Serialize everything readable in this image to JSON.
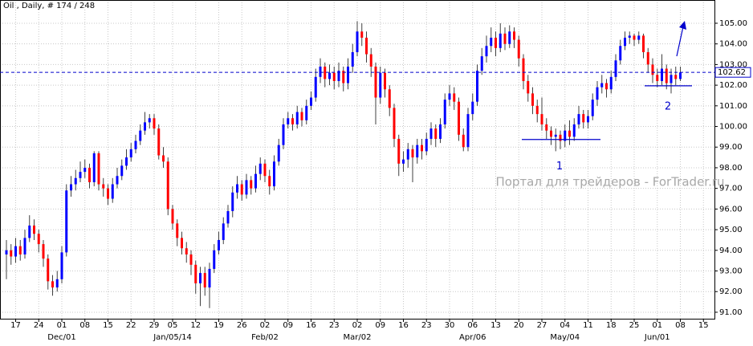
{
  "chart_data": {
    "type": "candlestick",
    "title": "Oil , Daily, # 174 / 248",
    "watermark": "Портал для трейдеров - ForTrader.ru",
    "categories": [
      null,
      null,
      "17",
      null,
      null,
      null,
      null,
      "24",
      null,
      null,
      null,
      null,
      "01",
      null,
      null,
      null,
      null,
      "08",
      null,
      null,
      null,
      null,
      "15",
      null,
      null,
      null,
      null,
      "22",
      null,
      null,
      null,
      null,
      "29",
      null,
      null,
      null,
      "05",
      null,
      null,
      null,
      null,
      "12",
      null,
      null,
      null,
      null,
      "19",
      null,
      null,
      null,
      null,
      "26",
      null,
      null,
      null,
      null,
      "02",
      null,
      null,
      null,
      null,
      "09",
      null,
      null,
      null,
      null,
      "16",
      null,
      null,
      null,
      null,
      "23",
      null,
      null,
      null,
      null,
      "02",
      null,
      null,
      null,
      null,
      "09",
      null,
      null,
      null,
      null,
      "16",
      null,
      null,
      null,
      null,
      "23",
      null,
      null,
      null,
      null,
      "30",
      null,
      null,
      null,
      null,
      "06",
      null,
      null,
      null,
      null,
      "13",
      null,
      null,
      null,
      null,
      "20",
      null,
      null,
      null,
      null,
      "27",
      null,
      null,
      null,
      null,
      "04",
      null,
      null,
      null,
      null,
      "11",
      null,
      null,
      null,
      null,
      "18",
      null,
      null,
      null,
      null,
      "25",
      null,
      null,
      null,
      null,
      "01",
      null,
      null,
      null,
      null,
      "08",
      null,
      null,
      null,
      null,
      "15"
    ],
    "month_labels": [
      null,
      null,
      null,
      null,
      null,
      null,
      null,
      null,
      null,
      null,
      null,
      null,
      "Dec/01",
      null,
      null,
      null,
      null,
      null,
      null,
      null,
      null,
      null,
      null,
      null,
      null,
      null,
      null,
      null,
      null,
      null,
      null,
      null,
      null,
      null,
      null,
      null,
      "Jan/05/14",
      null,
      null,
      null,
      null,
      null,
      null,
      null,
      null,
      null,
      null,
      null,
      null,
      null,
      null,
      null,
      null,
      null,
      null,
      null,
      "Feb/02",
      null,
      null,
      null,
      null,
      null,
      null,
      null,
      null,
      null,
      null,
      null,
      null,
      null,
      null,
      null,
      null,
      null,
      null,
      null,
      "Mar/02",
      null,
      null,
      null,
      null,
      null,
      null,
      null,
      null,
      null,
      null,
      null,
      null,
      null,
      null,
      null,
      null,
      null,
      null,
      null,
      null,
      null,
      null,
      null,
      null,
      "Apr/06",
      null,
      null,
      null,
      null,
      null,
      null,
      null,
      null,
      null,
      null,
      null,
      null,
      null,
      null,
      null,
      null,
      null,
      null,
      null,
      "May/04",
      null,
      null,
      null,
      null,
      null,
      null,
      null,
      null,
      null,
      null,
      null,
      null,
      null,
      null,
      null,
      null,
      null,
      null,
      null,
      "Jun/01",
      null,
      null,
      null,
      null,
      null,
      null,
      null,
      null,
      null,
      null
    ],
    "open": [
      93.8,
      94.0,
      93.7,
      94.2,
      93.8,
      94.6,
      95.2,
      94.8,
      94.3,
      93.6,
      92.5,
      92.2,
      92.6,
      93.9,
      96.9,
      97.2,
      97.5,
      97.8,
      98.0,
      97.3,
      98.7,
      97.2,
      97.0,
      96.5,
      97.2,
      97.6,
      98.1,
      98.5,
      98.9,
      99.3,
      99.8,
      100.2,
      100.4,
      99.9,
      98.6,
      98.3,
      96.0,
      95.3,
      94.6,
      94.1,
      93.8,
      93.3,
      92.4,
      92.9,
      92.2,
      93.1,
      94.0,
      94.5,
      95.3,
      95.9,
      96.8,
      97.2,
      96.7,
      97.4,
      97.0,
      97.7,
      98.2,
      97.6,
      97.1,
      98.3,
      99.1,
      100.1,
      100.4,
      100.1,
      100.7,
      100.3,
      101.0,
      101.4,
      102.4,
      102.9,
      102.3,
      102.6,
      102.2,
      102.7,
      102.1,
      102.9,
      103.6,
      104.6,
      104.3,
      103.5,
      102.9,
      101.4,
      102.6,
      101.8,
      100.9,
      99.4,
      98.2,
      98.4,
      98.9,
      98.5,
      99.1,
      98.8,
      99.4,
      99.9,
      99.4,
      100.1,
      101.3,
      101.6,
      101.2,
      99.6,
      99.0,
      100.6,
      101.2,
      102.7,
      103.4,
      103.9,
      104.3,
      103.8,
      104.5,
      104.0,
      104.6,
      104.2,
      103.3,
      102.2,
      101.6,
      101.0,
      100.6,
      100.1,
      99.8,
      99.5,
      99.6,
      99.3,
      99.8,
      99.5,
      100.1,
      100.6,
      100.2,
      100.5,
      101.3,
      101.9,
      102.1,
      101.8,
      102.4,
      103.2,
      103.9,
      104.3,
      104.4,
      104.2,
      104.4,
      103.6,
      103.0,
      102.5,
      102.2,
      102.8,
      102.1,
      102.5,
      102.3,
      null,
      null,
      null,
      null,
      null
    ],
    "high": [
      94.5,
      94.3,
      94.6,
      94.5,
      95.0,
      95.7,
      95.5,
      95.0,
      94.5,
      93.8,
      92.8,
      93.0,
      94.2,
      97.2,
      97.6,
      97.9,
      98.3,
      98.4,
      98.2,
      98.8,
      98.8,
      97.5,
      97.2,
      97.5,
      98.0,
      98.4,
      98.9,
      99.2,
      99.6,
      100.1,
      100.7,
      100.6,
      100.6,
      100.1,
      99.0,
      98.5,
      96.2,
      95.5,
      94.9,
      94.4,
      94.0,
      93.5,
      93.2,
      93.2,
      93.4,
      94.3,
      94.9,
      95.6,
      96.2,
      97.1,
      97.6,
      97.4,
      97.7,
      97.6,
      98.1,
      98.5,
      98.4,
      97.9,
      98.6,
      99.4,
      100.4,
      100.7,
      100.6,
      101.0,
      100.9,
      101.3,
      101.7,
      102.8,
      103.3,
      103.1,
      103.0,
      102.9,
      103.1,
      102.9,
      103.3,
      104.0,
      105.1,
      105.0,
      104.6,
      103.8,
      103.1,
      102.9,
      102.8,
      102.0,
      101.1,
      99.6,
      98.8,
      99.2,
      99.1,
      99.4,
      99.4,
      99.7,
      100.2,
      100.1,
      100.4,
      101.6,
      102.0,
      101.9,
      101.4,
      99.9,
      100.9,
      101.6,
      103.0,
      103.8,
      104.4,
      104.8,
      104.6,
      105.0,
      104.8,
      104.9,
      104.8,
      104.4,
      103.5,
      102.5,
      101.9,
      101.3,
      101.4,
      100.4,
      100.0,
      99.9,
      99.8,
      100.1,
      100.3,
      100.4,
      101.0,
      100.8,
      100.8,
      101.6,
      102.2,
      102.5,
      102.3,
      102.7,
      103.5,
      104.2,
      104.6,
      104.6,
      104.5,
      104.6,
      104.5,
      103.8,
      103.3,
      102.8,
      103.5,
      103.0,
      102.8,
      102.9,
      102.9,
      null,
      null,
      null,
      null,
      null
    ],
    "low": [
      92.6,
      93.3,
      93.4,
      93.5,
      93.6,
      94.4,
      94.5,
      93.9,
      93.2,
      92.1,
      91.8,
      92.0,
      92.4,
      93.7,
      96.6,
      96.9,
      97.3,
      97.5,
      97.0,
      97.1,
      96.9,
      96.6,
      96.2,
      96.3,
      97.0,
      97.4,
      97.9,
      98.3,
      98.7,
      99.1,
      99.6,
      99.9,
      99.6,
      98.4,
      98.0,
      95.7,
      95.0,
      94.2,
      93.8,
      93.4,
      92.8,
      91.9,
      91.3,
      91.8,
      91.2,
      92.9,
      93.8,
      94.3,
      95.1,
      95.6,
      96.5,
      96.4,
      96.5,
      96.7,
      96.8,
      97.4,
      97.3,
      96.7,
      96.9,
      98.1,
      98.9,
      99.9,
      99.8,
      99.9,
      100.0,
      100.1,
      100.8,
      101.2,
      102.1,
      101.9,
      102.0,
      101.8,
      101.9,
      101.7,
      101.8,
      102.6,
      103.4,
      103.9,
      103.1,
      102.4,
      100.1,
      101.1,
      101.4,
      100.5,
      99.0,
      97.6,
      97.8,
      98.0,
      97.3,
      98.2,
      98.4,
      98.6,
      99.1,
      99.0,
      99.2,
      99.9,
      101.0,
      100.8,
      99.3,
      98.8,
      98.8,
      100.3,
      101.0,
      102.5,
      103.1,
      103.6,
      103.4,
      103.6,
      103.7,
      103.8,
      103.8,
      102.9,
      101.8,
      101.2,
      100.6,
      100.2,
      99.8,
      99.4,
      99.1,
      98.8,
      98.9,
      99.0,
      99.1,
      99.3,
      99.9,
      99.9,
      99.9,
      100.3,
      101.0,
      101.6,
      101.4,
      101.6,
      102.2,
      103.0,
      103.7,
      104.0,
      103.9,
      104.0,
      103.3,
      102.6,
      102.1,
      101.9,
      102.0,
      101.8,
      101.6,
      102.0,
      102.2,
      null,
      null,
      null,
      null,
      null
    ],
    "close": [
      94.0,
      93.7,
      94.2,
      93.8,
      94.6,
      95.2,
      94.8,
      94.3,
      93.6,
      92.5,
      92.2,
      92.6,
      93.9,
      96.9,
      97.2,
      97.5,
      97.8,
      98.0,
      97.3,
      98.7,
      97.2,
      97.0,
      96.5,
      97.2,
      97.6,
      98.1,
      98.5,
      98.9,
      99.3,
      99.8,
      100.2,
      100.4,
      99.9,
      98.6,
      98.3,
      96.0,
      95.3,
      94.6,
      94.1,
      93.8,
      93.3,
      92.4,
      92.9,
      92.2,
      93.1,
      94.0,
      94.5,
      95.3,
      95.9,
      96.8,
      97.2,
      96.7,
      97.4,
      97.0,
      97.7,
      98.2,
      97.6,
      97.1,
      98.3,
      99.1,
      100.1,
      100.4,
      100.1,
      100.7,
      100.3,
      101.0,
      101.4,
      102.4,
      102.9,
      102.3,
      102.6,
      102.2,
      102.7,
      102.1,
      102.9,
      103.6,
      104.6,
      104.3,
      103.5,
      102.9,
      101.4,
      102.6,
      101.8,
      100.9,
      99.4,
      98.2,
      98.4,
      98.9,
      98.5,
      99.1,
      98.8,
      99.4,
      99.9,
      99.4,
      100.1,
      101.3,
      101.6,
      101.2,
      99.6,
      99.0,
      100.6,
      101.2,
      102.7,
      103.4,
      103.9,
      104.3,
      103.8,
      104.5,
      104.0,
      104.6,
      104.2,
      103.3,
      102.2,
      101.6,
      101.0,
      100.6,
      100.1,
      99.8,
      99.5,
      99.6,
      99.3,
      99.8,
      99.5,
      100.1,
      100.6,
      100.2,
      100.5,
      101.3,
      101.9,
      102.1,
      101.8,
      102.4,
      103.2,
      103.9,
      104.3,
      104.4,
      104.2,
      104.4,
      103.6,
      103.0,
      102.5,
      102.2,
      102.8,
      102.1,
      102.5,
      102.3,
      102.62,
      null,
      null,
      null,
      null,
      null
    ],
    "up_color": "#0000ff",
    "down_color": "#ff0000",
    "current_price": 102.62,
    "levels": [
      99.37,
      101.97
    ],
    "annotations": [
      "1",
      "2"
    ],
    "ylim": [
      90.57,
      105.66
    ],
    "yticks": [
      {
        "value": 91,
        "label": "91.00"
      },
      {
        "value": 92,
        "label": "92.00"
      },
      {
        "value": 93,
        "label": "93.00"
      },
      {
        "value": 94,
        "label": "94.00"
      },
      {
        "value": 95,
        "label": "95.00"
      },
      {
        "value": 96,
        "label": "96.00"
      },
      {
        "value": 97,
        "label": "97.00"
      },
      {
        "value": 98,
        "label": "98.00"
      },
      {
        "value": 99,
        "label": "99.00"
      },
      {
        "value": 100,
        "label": "100.00"
      },
      {
        "value": 101,
        "label": "101.00"
      },
      {
        "value": 102,
        "label": "102.00"
      },
      {
        "value": 103,
        "label": "103.00"
      },
      {
        "value": 104,
        "label": "104.00"
      },
      {
        "value": 105,
        "label": "105.00"
      }
    ],
    "grid": true
  }
}
